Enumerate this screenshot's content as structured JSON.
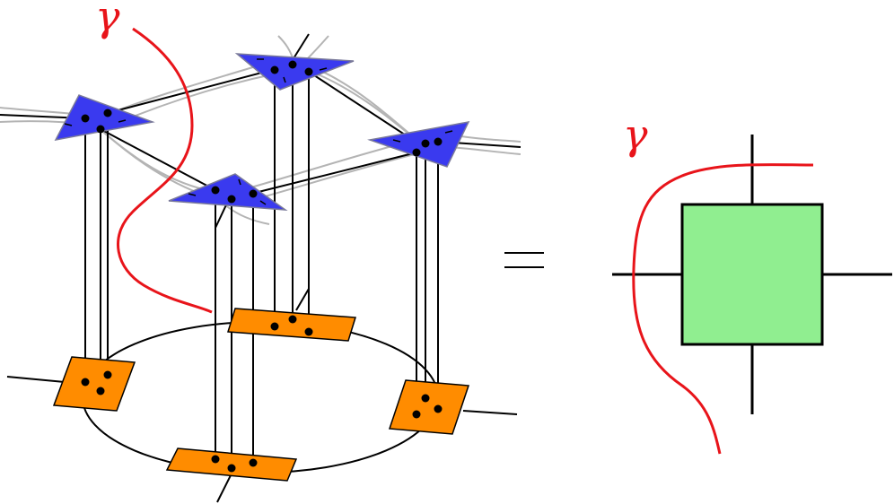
{
  "labels": {
    "gamma_left": "γ",
    "gamma_right": "γ",
    "equals": "="
  },
  "colors": {
    "triangle_fill": "#3a3aef",
    "triangle_stroke": "#7a7a9a",
    "plate_fill": "#ff8c00",
    "square_fill": "#90ee90",
    "curve": "#e8141a",
    "virtual_bond": "#b4b4b4",
    "line": "#000000"
  }
}
